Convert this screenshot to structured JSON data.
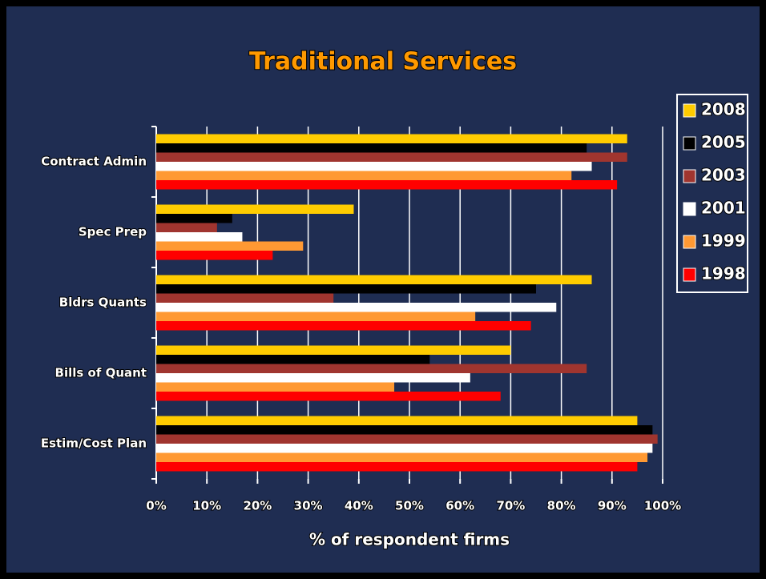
{
  "chart_data": {
    "type": "hbar",
    "title": "Traditional Services",
    "xlabel": "% of respondent firms",
    "categories": [
      "Contract Admin",
      "Spec Prep",
      "Bldrs Quants",
      "Bills of Quant",
      "Estim/Cost Plan"
    ],
    "series": [
      {
        "name": "2008",
        "color": "#ffcc00",
        "values": [
          93,
          39,
          86,
          70,
          95
        ]
      },
      {
        "name": "2005",
        "color": "#000000",
        "values": [
          85,
          15,
          75,
          54,
          98
        ]
      },
      {
        "name": "2003",
        "color": "#a0352f",
        "values": [
          93,
          12,
          35,
          85,
          99
        ]
      },
      {
        "name": "2001",
        "color": "#ffffff",
        "values": [
          86,
          17,
          79,
          62,
          98
        ]
      },
      {
        "name": "1999",
        "color": "#ff9933",
        "values": [
          82,
          29,
          63,
          47,
          97
        ]
      },
      {
        "name": "1998",
        "color": "#ff0000",
        "values": [
          91,
          23,
          74,
          68,
          95
        ]
      }
    ],
    "xlim": [
      0,
      100
    ],
    "xticks": [
      {
        "value": 0,
        "label": "0%"
      },
      {
        "value": 10,
        "label": "10%"
      },
      {
        "value": 20,
        "label": "20%"
      },
      {
        "value": 30,
        "label": "30%"
      },
      {
        "value": 40,
        "label": "40%"
      },
      {
        "value": 50,
        "label": "50%"
      },
      {
        "value": 60,
        "label": "60%"
      },
      {
        "value": 70,
        "label": "70%"
      },
      {
        "value": 80,
        "label": "80%"
      },
      {
        "value": 90,
        "label": "90%"
      },
      {
        "value": 100,
        "label": "100%"
      }
    ],
    "grid": true,
    "legend": "right"
  }
}
